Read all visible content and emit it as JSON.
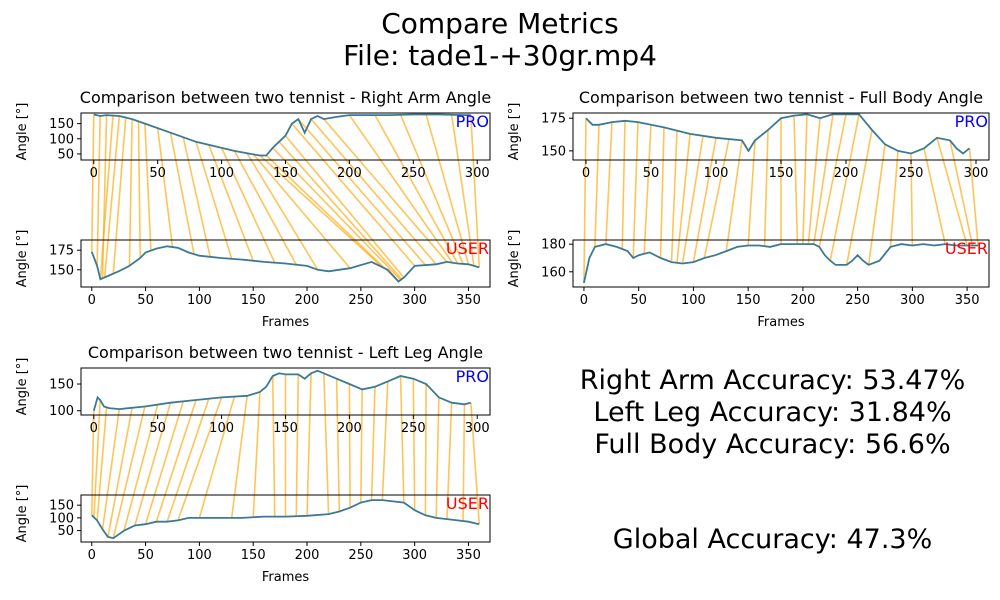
{
  "suptitle": {
    "line1": "Compare Metrics",
    "line2": "File: tade1-+30gr.mp4"
  },
  "colors": {
    "line": "#3b7a97",
    "warp": "#ffa500",
    "pro": "#0000ff",
    "user": "#ff0000"
  },
  "labels": {
    "pro": "PRO",
    "user": "USER",
    "ylabel": "Angle [°]",
    "xlabel": "Frames"
  },
  "accuracy": {
    "right_arm": "Right Arm Accuracy: 53.47%",
    "left_leg": "Left Leg Accuracy: 31.84%",
    "full_body": "Full Body Accuracy: 56.6%",
    "global": "Global Accuracy: 47.3%"
  },
  "chart_data": [
    {
      "type": "line",
      "title": "Comparison between two tennist - Right Arm Angle",
      "pro": {
        "name": "PRO",
        "xlim": [
          -10,
          310
        ],
        "ylim": [
          30,
          185
        ],
        "xticks": [
          0,
          50,
          100,
          150,
          200,
          250,
          300
        ],
        "yticks": [
          50,
          100,
          150
        ],
        "x": [
          0,
          5,
          10,
          20,
          30,
          40,
          60,
          80,
          100,
          110,
          120,
          130,
          135,
          140,
          150,
          155,
          160,
          165,
          170,
          175,
          180,
          190,
          200,
          210,
          230,
          250,
          270,
          290,
          295
        ],
        "y": [
          180,
          175,
          178,
          175,
          165,
          150,
          120,
          90,
          70,
          60,
          52,
          45,
          45,
          70,
          110,
          150,
          165,
          120,
          165,
          175,
          165,
          172,
          178,
          178,
          178,
          180,
          180,
          178,
          178
        ]
      },
      "user": {
        "name": "USER",
        "xlim": [
          -10,
          370
        ],
        "ylim": [
          128,
          188
        ],
        "xticks": [
          0,
          50,
          100,
          150,
          200,
          250,
          300,
          350
        ],
        "yticks": [
          150,
          175
        ],
        "x": [
          0,
          5,
          8,
          15,
          25,
          35,
          45,
          50,
          60,
          70,
          80,
          90,
          100,
          120,
          140,
          160,
          180,
          200,
          210,
          220,
          240,
          260,
          275,
          285,
          290,
          300,
          320,
          330,
          340,
          350,
          360
        ],
        "y": [
          173,
          155,
          138,
          142,
          148,
          155,
          165,
          172,
          177,
          180,
          178,
          172,
          168,
          165,
          163,
          160,
          158,
          155,
          150,
          148,
          152,
          160,
          150,
          135,
          140,
          155,
          157,
          160,
          158,
          157,
          153
        ]
      },
      "warp": [
        [
          0,
          0
        ],
        [
          5,
          5
        ],
        [
          10,
          10
        ],
        [
          15,
          8
        ],
        [
          20,
          12
        ],
        [
          25,
          20
        ],
        [
          30,
          35
        ],
        [
          35,
          45
        ],
        [
          40,
          55
        ],
        [
          50,
          75
        ],
        [
          60,
          95
        ],
        [
          70,
          110
        ],
        [
          80,
          130
        ],
        [
          90,
          150
        ],
        [
          100,
          170
        ],
        [
          110,
          190
        ],
        [
          120,
          210
        ],
        [
          125,
          240
        ],
        [
          130,
          270
        ],
        [
          135,
          285
        ],
        [
          140,
          287
        ],
        [
          145,
          288
        ],
        [
          150,
          290
        ],
        [
          155,
          300
        ],
        [
          160,
          310
        ],
        [
          170,
          320
        ],
        [
          180,
          330
        ],
        [
          200,
          335
        ],
        [
          220,
          340
        ],
        [
          240,
          345
        ],
        [
          260,
          350
        ],
        [
          280,
          355
        ],
        [
          295,
          360
        ]
      ]
    },
    {
      "type": "line",
      "title": "Comparison between two tennist - Full Body Angle",
      "pro": {
        "name": "PRO",
        "xlim": [
          -10,
          310
        ],
        "ylim": [
          143,
          179
        ],
        "xticks": [
          0,
          50,
          100,
          150,
          200,
          250,
          300
        ],
        "yticks": [
          150,
          175
        ],
        "x": [
          0,
          5,
          10,
          20,
          30,
          40,
          60,
          80,
          100,
          120,
          125,
          130,
          140,
          150,
          160,
          170,
          180,
          190,
          200,
          210,
          220,
          230,
          240,
          250,
          260,
          270,
          280,
          285,
          290,
          295
        ],
        "y": [
          175,
          170,
          170,
          172,
          173,
          172,
          168,
          163,
          160,
          158,
          150,
          158,
          166,
          175,
          177,
          178,
          175,
          178,
          178,
          178,
          166,
          155,
          150,
          148,
          152,
          160,
          158,
          152,
          148,
          152
        ]
      },
      "user": {
        "name": "USER",
        "xlim": [
          -10,
          370
        ],
        "ylim": [
          149,
          183
        ],
        "xticks": [
          0,
          50,
          100,
          150,
          200,
          250,
          300,
          350
        ],
        "yticks": [
          160,
          180
        ],
        "x": [
          0,
          5,
          10,
          20,
          30,
          40,
          45,
          50,
          60,
          70,
          80,
          90,
          100,
          110,
          120,
          130,
          140,
          150,
          160,
          170,
          180,
          190,
          200,
          210,
          215,
          220,
          225,
          230,
          240,
          245,
          250,
          255,
          260,
          270,
          280,
          290,
          300,
          310,
          320,
          330,
          340,
          350,
          360
        ],
        "y": [
          152,
          170,
          178,
          180,
          178,
          175,
          170,
          172,
          174,
          170,
          167,
          166,
          167,
          170,
          172,
          175,
          178,
          179,
          179,
          178,
          180,
          180,
          180,
          180,
          178,
          172,
          168,
          165,
          165,
          168,
          172,
          168,
          165,
          168,
          178,
          180,
          179,
          180,
          179,
          180,
          179,
          179,
          179
        ]
      },
      "warp": [
        [
          0,
          0
        ],
        [
          10,
          10
        ],
        [
          20,
          20
        ],
        [
          30,
          35
        ],
        [
          40,
          45
        ],
        [
          50,
          55
        ],
        [
          60,
          70
        ],
        [
          70,
          80
        ],
        [
          80,
          85
        ],
        [
          90,
          90
        ],
        [
          100,
          100
        ],
        [
          110,
          110
        ],
        [
          120,
          130
        ],
        [
          130,
          150
        ],
        [
          140,
          165
        ],
        [
          150,
          180
        ],
        [
          160,
          195
        ],
        [
          170,
          200
        ],
        [
          180,
          205
        ],
        [
          190,
          210
        ],
        [
          200,
          215
        ],
        [
          210,
          225
        ],
        [
          220,
          240
        ],
        [
          230,
          260
        ],
        [
          240,
          280
        ],
        [
          250,
          300
        ],
        [
          260,
          330
        ],
        [
          270,
          350
        ],
        [
          280,
          355
        ],
        [
          295,
          360
        ]
      ]
    },
    {
      "type": "line",
      "title": "Comparison between two tennist - Left Leg Angle",
      "pro": {
        "name": "PRO",
        "xlim": [
          -10,
          310
        ],
        "ylim": [
          92,
          180
        ],
        "xticks": [
          0,
          50,
          100,
          150,
          200,
          250,
          300
        ],
        "yticks": [
          100,
          150
        ],
        "x": [
          0,
          3,
          5,
          8,
          12,
          20,
          40,
          60,
          80,
          100,
          120,
          130,
          135,
          140,
          145,
          150,
          160,
          165,
          170,
          175,
          180,
          190,
          200,
          210,
          220,
          230,
          240,
          250,
          260,
          270,
          280,
          290,
          295
        ],
        "y": [
          100,
          125,
          120,
          108,
          105,
          103,
          108,
          115,
          120,
          125,
          128,
          135,
          145,
          165,
          170,
          168,
          168,
          160,
          170,
          175,
          170,
          160,
          150,
          140,
          145,
          155,
          165,
          160,
          150,
          125,
          115,
          112,
          115
        ]
      },
      "user": {
        "name": "USER",
        "xlim": [
          -10,
          370
        ],
        "ylim": [
          5,
          190
        ],
        "xticks": [
          0,
          50,
          100,
          150,
          200,
          250,
          300,
          350
        ],
        "yticks": [
          50,
          100,
          150
        ],
        "x": [
          0,
          5,
          10,
          15,
          20,
          30,
          40,
          50,
          60,
          70,
          80,
          90,
          100,
          120,
          140,
          160,
          180,
          200,
          220,
          230,
          240,
          250,
          260,
          270,
          280,
          290,
          300,
          310,
          320,
          330,
          340,
          350,
          360
        ],
        "y": [
          110,
          90,
          55,
          25,
          20,
          50,
          70,
          75,
          85,
          85,
          90,
          100,
          100,
          100,
          100,
          105,
          105,
          108,
          115,
          125,
          140,
          160,
          170,
          170,
          165,
          160,
          130,
          110,
          100,
          95,
          90,
          85,
          75
        ]
      },
      "warp": [
        [
          0,
          0
        ],
        [
          5,
          2
        ],
        [
          10,
          5
        ],
        [
          20,
          10
        ],
        [
          30,
          15
        ],
        [
          40,
          20
        ],
        [
          50,
          30
        ],
        [
          60,
          40
        ],
        [
          70,
          50
        ],
        [
          80,
          60
        ],
        [
          90,
          70
        ],
        [
          100,
          80
        ],
        [
          110,
          100
        ],
        [
          120,
          130
        ],
        [
          130,
          150
        ],
        [
          140,
          170
        ],
        [
          150,
          180
        ],
        [
          160,
          190
        ],
        [
          170,
          200
        ],
        [
          180,
          220
        ],
        [
          190,
          230
        ],
        [
          200,
          240
        ],
        [
          210,
          250
        ],
        [
          220,
          260
        ],
        [
          230,
          270
        ],
        [
          240,
          290
        ],
        [
          250,
          300
        ],
        [
          260,
          310
        ],
        [
          270,
          320
        ],
        [
          280,
          330
        ],
        [
          290,
          345
        ],
        [
          295,
          360
        ]
      ]
    }
  ]
}
